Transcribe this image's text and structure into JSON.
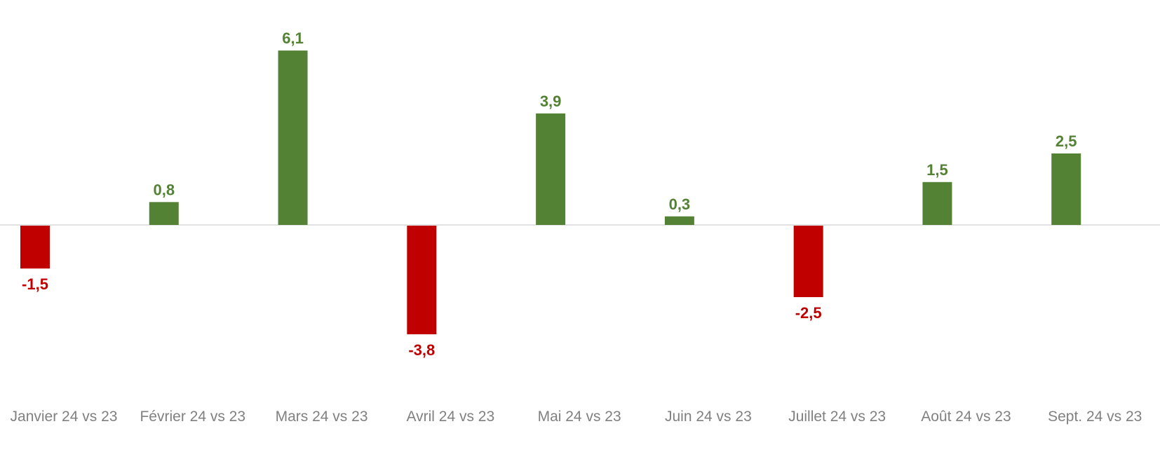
{
  "chart_data": {
    "type": "bar",
    "categories": [
      "Janvier 24 vs 23",
      "Février 24 vs 23",
      "Mars 24 vs 23",
      "Avril 24 vs 23",
      "Mai 24 vs 23",
      "Juin 24 vs 23",
      "Juillet 24 vs 23",
      "Août 24 vs 23",
      "Sept. 24 vs 23"
    ],
    "values": [
      -1.5,
      0.8,
      6.1,
      -3.8,
      3.9,
      0.3,
      -2.5,
      1.5,
      2.5
    ],
    "value_labels": [
      "-1,5",
      "0,8",
      "6,1",
      "-3,8",
      "3,9",
      "0,3",
      "-2,5",
      "1,5",
      "2,5"
    ],
    "title": "",
    "xlabel": "",
    "ylabel": "",
    "ylim": [
      -5,
      7.9
    ],
    "grid": false,
    "legend": "none",
    "colors": {
      "positive": "#548235",
      "negative": "#C00000",
      "zero_line": "#D9D9D9",
      "tick_text": "#808080"
    }
  }
}
